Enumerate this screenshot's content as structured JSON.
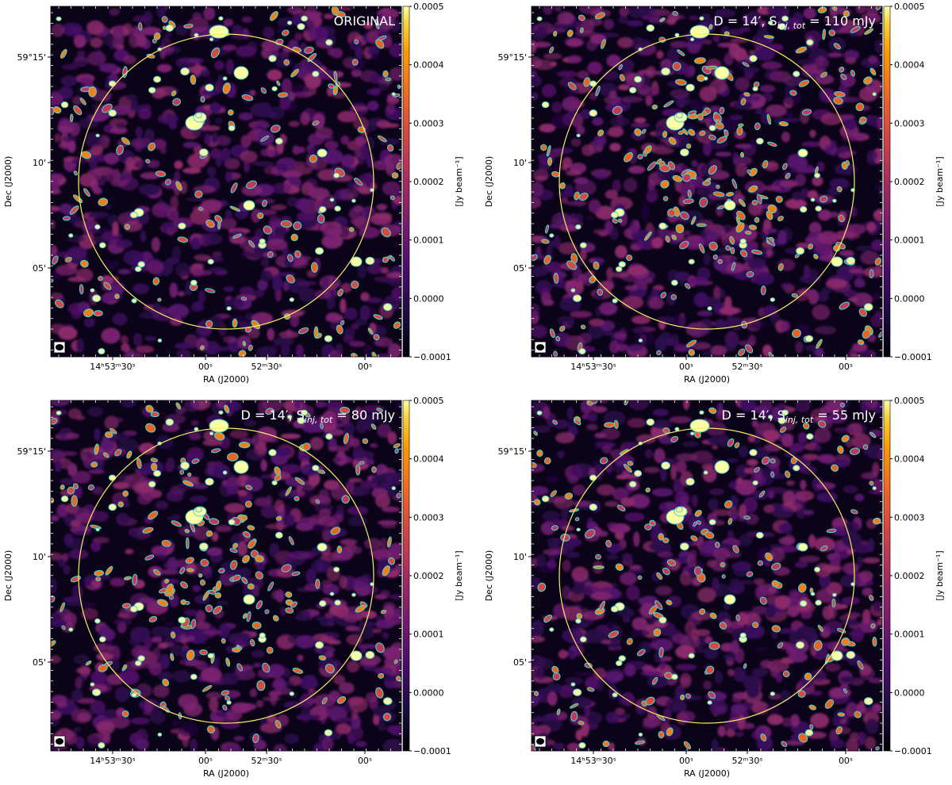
{
  "figure": {
    "xaxis_label": "RA (J2000)",
    "yaxis_label": "Dec (J2000)",
    "colorbar_label": "[Jy beam⁻¹]",
    "xtick_labels": [
      "14ʰ53ᵐ30ˢ",
      "00ˢ",
      "52ᵐ30ˢ",
      "00ˢ"
    ],
    "ytick_labels": [
      "59°15'",
      "10'",
      "05'"
    ],
    "colorbar_ticks": [
      "0.0005",
      "0.0004",
      "0.0003",
      "0.0002",
      "0.0001",
      "0.0000",
      "−0.0001"
    ],
    "colorbar_range": [
      -0.0001,
      0.0005
    ],
    "colormap": "inferno",
    "colors": {
      "circle": "#f5ef6a",
      "contour": "#49d0d0",
      "background": "#ffffff"
    },
    "panels": [
      {
        "title": "ORIGINAL"
      },
      {
        "title": "D = 14′, S",
        "title_sub": "inj, tot",
        "title_tail": " = 110 mJy"
      },
      {
        "title": "D = 14′, S",
        "title_sub": "inj, tot",
        "title_tail": " = 80 mJy"
      },
      {
        "title": "D = 14′, S",
        "title_sub": "inj, tot",
        "title_tail": " = 55 mJy"
      }
    ]
  }
}
